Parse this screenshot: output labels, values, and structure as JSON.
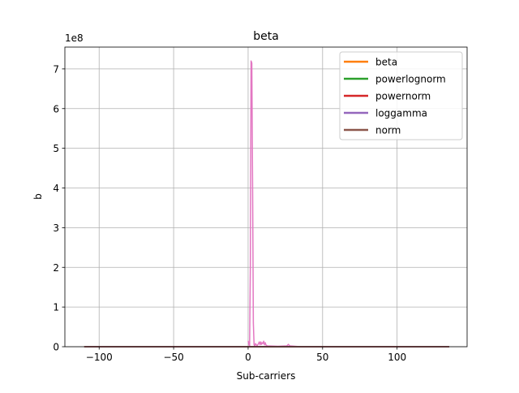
{
  "chart_data": {
    "type": "line",
    "title": "beta",
    "xlabel": "Sub-carriers",
    "ylabel": "b",
    "y_scale_label": "1e8",
    "xlim": [
      -123,
      147
    ],
    "ylim": [
      0,
      7.55
    ],
    "y_unit_multiplier": 100000000,
    "grid": true,
    "legend_position": "top-right",
    "x_ticks": [
      -100,
      -50,
      0,
      50,
      100
    ],
    "x_tick_labels": [
      "−100",
      "−50",
      "0",
      "50",
      "100"
    ],
    "y_ticks": [
      0,
      1,
      2,
      3,
      4,
      5,
      6,
      7
    ],
    "y_tick_labels": [
      "0",
      "1",
      "2",
      "3",
      "4",
      "5",
      "6",
      "7"
    ],
    "series": [
      {
        "name": "beta",
        "color": "#ff7f0e",
        "x": [
          -110,
          135
        ],
        "y": [
          0,
          0
        ]
      },
      {
        "name": "powerlognorm",
        "color": "#2ca02c",
        "x": [
          -110,
          135
        ],
        "y": [
          0,
          0
        ]
      },
      {
        "name": "powernorm",
        "color": "#d62728",
        "x": [
          -110,
          135
        ],
        "y": [
          0,
          0
        ]
      },
      {
        "name": "loggamma",
        "color": "#9467bd",
        "x": [
          -110,
          135
        ],
        "y": [
          0,
          0
        ]
      },
      {
        "name": "norm",
        "color": "#8c564b",
        "x": [
          -110,
          135
        ],
        "y": [
          0,
          0
        ]
      }
    ],
    "extra_series": [
      {
        "color": "#e377c2",
        "x": [
          0,
          0.5,
          1,
          1.5,
          2,
          2.5,
          3,
          3.5,
          4,
          4.5,
          5,
          6,
          7,
          7.5,
          8,
          8.5,
          9,
          9.5,
          10,
          10.5,
          11,
          11.5,
          12,
          13,
          20,
          26,
          27,
          28,
          35
        ],
        "y": [
          0.15,
          0.05,
          0.02,
          2.0,
          7.2,
          7.15,
          4.0,
          0.6,
          0.05,
          0.02,
          0.08,
          0.02,
          0.08,
          0.12,
          0.05,
          0.12,
          0.06,
          0.1,
          0.08,
          0.14,
          0.05,
          0.1,
          0.04,
          0.02,
          0.01,
          0.02,
          0.06,
          0.02,
          0.0
        ]
      }
    ]
  }
}
